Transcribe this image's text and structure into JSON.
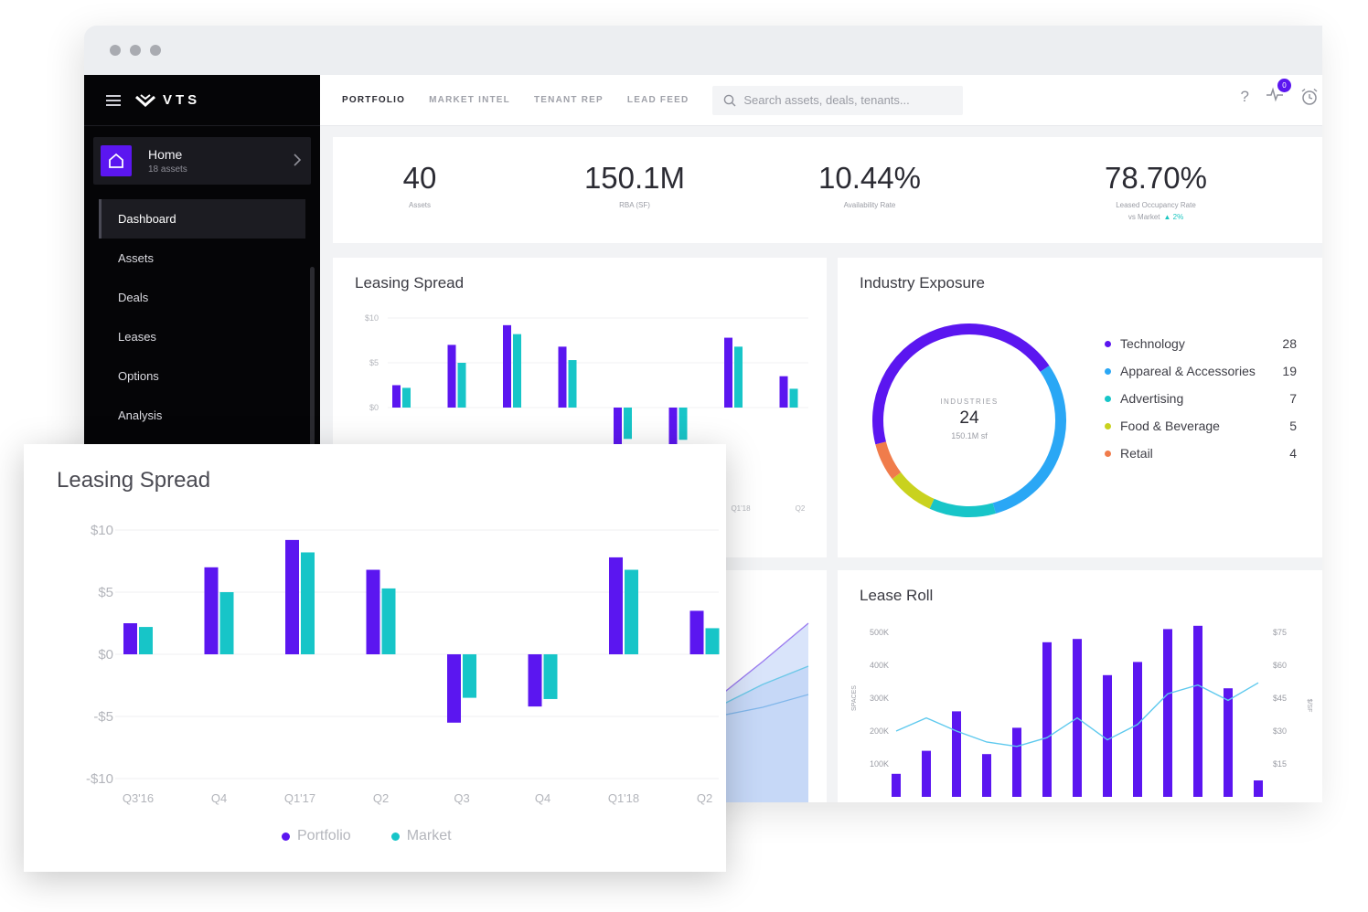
{
  "colors": {
    "portfolio": "#5b16f0",
    "market": "#17c5c8",
    "accent": "#5b16f0"
  },
  "sidebar": {
    "brand": "VTS",
    "home_title": "Home",
    "home_sub": "18 assets",
    "items": [
      {
        "label": "Dashboard",
        "active": true
      },
      {
        "label": "Assets"
      },
      {
        "label": "Deals"
      },
      {
        "label": "Leases"
      },
      {
        "label": "Options"
      },
      {
        "label": "Analysis"
      }
    ]
  },
  "topbar": {
    "tabs": [
      "PORTFOLIO",
      "MARKET INTEL",
      "TENANT REP",
      "LEAD FEED"
    ],
    "search_placeholder": "Search assets, deals, tenants...",
    "help": "?",
    "notification_count": "0"
  },
  "kpis": [
    {
      "value": "40",
      "label": "Assets"
    },
    {
      "value": "150.1M",
      "label": "RBA (SF)"
    },
    {
      "value": "10.44%",
      "label": "Availability Rate"
    },
    {
      "value": "78.70%",
      "label": "Leased Occupancy Rate",
      "sub": "vs Market",
      "delta": "▲ 2%"
    }
  ],
  "leasing_spread_card": {
    "title": "Leasing Spread",
    "x_visible": [
      "Q1'18",
      "Q2"
    ]
  },
  "industry_exposure": {
    "title": "Industry Exposure",
    "center_label": "INDUSTRIES",
    "center_value": "24",
    "center_sub": "150.1M sf",
    "legend": [
      {
        "name": "Technology",
        "count": "28",
        "color": "#5b16f0"
      },
      {
        "name": "Appareal & Accessories",
        "count": "19",
        "color": "#2aa7f5"
      },
      {
        "name": "Advertising",
        "count": "7",
        "color": "#17c5c8"
      },
      {
        "name": "Food & Beverage",
        "count": "5",
        "color": "#c9d21e"
      },
      {
        "name": "Retail",
        "count": "4",
        "color": "#f07c4b"
      }
    ]
  },
  "lease_roll": {
    "title": "Lease Roll",
    "y_left_label": "SPACES",
    "y_right_label": "$/SF"
  },
  "zoom_panel": {
    "title": "Leasing Spread",
    "legend": [
      {
        "name": "Portfolio",
        "color": "#5b16f0"
      },
      {
        "name": "Market",
        "color": "#17c5c8"
      }
    ]
  },
  "chart_data": [
    {
      "type": "bar",
      "title": "Leasing Spread",
      "categories": [
        "Q3'16",
        "Q4",
        "Q1'17",
        "Q2",
        "Q3",
        "Q4",
        "Q1'18",
        "Q2"
      ],
      "series": [
        {
          "name": "Portfolio",
          "values": [
            2.5,
            7,
            9.2,
            6.8,
            -5.5,
            -4.2,
            7.8,
            3.5
          ]
        },
        {
          "name": "Market",
          "values": [
            2.2,
            5,
            8.2,
            5.3,
            -3.5,
            -3.6,
            6.8,
            2.1
          ]
        }
      ],
      "y_ticks": [
        "$10",
        "$5",
        "$0",
        "-$5",
        "-$10"
      ],
      "ylim": [
        -10,
        10
      ],
      "legend": "bottom"
    },
    {
      "type": "bar",
      "title": "Lease Roll",
      "left_axis": {
        "label": "SPACES",
        "ticks": [
          "500K",
          "400K",
          "300K",
          "200K",
          "100K"
        ],
        "range": [
          0,
          500000
        ]
      },
      "right_axis": {
        "label": "$/SF",
        "ticks": [
          "$75",
          "$60",
          "$45",
          "$30",
          "$15"
        ],
        "range": [
          0,
          75
        ]
      },
      "bars": [
        70000,
        140000,
        260000,
        130000,
        210000,
        470000,
        480000,
        370000,
        410000,
        510000,
        520000,
        330000,
        50000
      ],
      "line": [
        30,
        36,
        30,
        25,
        23,
        27,
        36,
        26,
        33,
        47,
        51,
        44,
        52
      ]
    },
    {
      "type": "pie",
      "title": "Industry Exposure",
      "labels": [
        "Technology",
        "Appareal & Accessories",
        "Advertising",
        "Food & Beverage",
        "Retail"
      ],
      "values": [
        28,
        19,
        7,
        5,
        4
      ]
    }
  ]
}
